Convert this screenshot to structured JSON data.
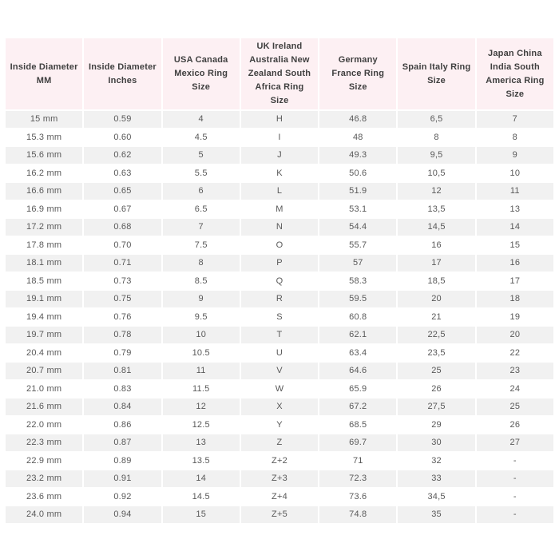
{
  "colors": {
    "header_bg": "#fdf0f3",
    "header_text": "#3f3f3f",
    "row_odd_bg": "#f1f1f1",
    "row_even_bg": "#ffffff",
    "body_text": "#595959",
    "grid_gap": "#ffffff",
    "page_bg": "#ffffff"
  },
  "chart_data": {
    "type": "table",
    "columns": [
      "Inside Diameter MM",
      "Inside Diameter Inches",
      "USA Canada Mexico Ring Size",
      "UK Ireland Australia New Zealand South Africa Ring Size",
      "Germany France Ring Size",
      "Spain Italy Ring Size",
      "Japan China India South America Ring Size"
    ],
    "rows": [
      [
        "15 mm",
        "0.59",
        "4",
        "H",
        "46.8",
        "6,5",
        "7"
      ],
      [
        "15.3 mm",
        "0.60",
        "4.5",
        "I",
        "48",
        "8",
        "8"
      ],
      [
        "15.6 mm",
        "0.62",
        "5",
        "J",
        "49.3",
        "9,5",
        "9"
      ],
      [
        "16.2 mm",
        "0.63",
        "5.5",
        "K",
        "50.6",
        "10,5",
        "10"
      ],
      [
        "16.6 mm",
        "0.65",
        "6",
        "L",
        "51.9",
        "12",
        "11"
      ],
      [
        "16.9 mm",
        "0.67",
        "6.5",
        "M",
        "53.1",
        "13,5",
        "13"
      ],
      [
        "17.2 mm",
        "0.68",
        "7",
        "N",
        "54.4",
        "14,5",
        "14"
      ],
      [
        "17.8 mm",
        "0.70",
        "7.5",
        "O",
        "55.7",
        "16",
        "15"
      ],
      [
        "18.1 mm",
        "0.71",
        "8",
        "P",
        "57",
        "17",
        "16"
      ],
      [
        "18.5 mm",
        "0.73",
        "8.5",
        "Q",
        "58.3",
        "18,5",
        "17"
      ],
      [
        "19.1 mm",
        "0.75",
        "9",
        "R",
        "59.5",
        "20",
        "18"
      ],
      [
        "19.4 mm",
        "0.76",
        "9.5",
        "S",
        "60.8",
        "21",
        "19"
      ],
      [
        "19.7 mm",
        "0.78",
        "10",
        "T",
        "62.1",
        "22,5",
        "20"
      ],
      [
        "20.4 mm",
        "0.79",
        "10.5",
        "U",
        "63.4",
        "23,5",
        "22"
      ],
      [
        "20.7 mm",
        "0.81",
        "11",
        "V",
        "64.6",
        "25",
        "23"
      ],
      [
        "21.0 mm",
        "0.83",
        "11.5",
        "W",
        "65.9",
        "26",
        "24"
      ],
      [
        "21.6 mm",
        "0.84",
        "12",
        "X",
        "67.2",
        "27,5",
        "25"
      ],
      [
        "22.0 mm",
        "0.86",
        "12.5",
        "Y",
        "68.5",
        "29",
        "26"
      ],
      [
        "22.3 mm",
        "0.87",
        "13",
        "Z",
        "69.7",
        "30",
        "27"
      ],
      [
        "22.9 mm",
        "0.89",
        "13.5",
        "Z+2",
        "71",
        "32",
        "-"
      ],
      [
        "23.2 mm",
        "0.91",
        "14",
        "Z+3",
        "72.3",
        "33",
        "-"
      ],
      [
        "23.6 mm",
        "0.92",
        "14.5",
        "Z+4",
        "73.6",
        "34,5",
        "-"
      ],
      [
        "24.0 mm",
        "0.94",
        "15",
        "Z+5",
        "74.8",
        "35",
        "-"
      ]
    ]
  }
}
